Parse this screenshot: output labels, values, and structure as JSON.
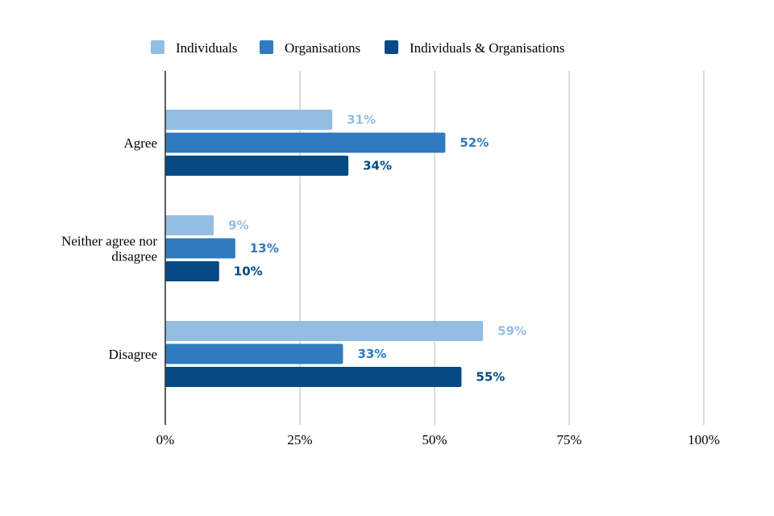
{
  "chart_data": {
    "type": "bar",
    "orientation": "horizontal",
    "title": "",
    "xlabel": "",
    "ylabel": "",
    "xlim": [
      0,
      100
    ],
    "grid": true,
    "legend": "top-center",
    "categories": [
      "Agree",
      "Neither agree nor disagree",
      "Disagree"
    ],
    "category_lines": [
      [
        "Agree"
      ],
      [
        "Neither agree nor",
        "disagree"
      ],
      [
        "Disagree"
      ]
    ],
    "ticks": [
      0,
      25,
      50,
      75,
      100
    ],
    "tick_labels": [
      "0%",
      "25%",
      "50%",
      "75%",
      "100%"
    ],
    "series": [
      {
        "name": "Individuals",
        "color": "#94bde3",
        "values": [
          31,
          9,
          59
        ],
        "labels": [
          "31%",
          "9%",
          "59%"
        ]
      },
      {
        "name": "Organisations",
        "color": "#2e7bbf",
        "values": [
          52,
          13,
          33
        ],
        "labels": [
          "52%",
          "13%",
          "33%"
        ]
      },
      {
        "name": "Individuals & Organisations",
        "color": "#054a85",
        "values": [
          34,
          10,
          55
        ],
        "labels": [
          "34%",
          "10%",
          "55%"
        ]
      }
    ]
  }
}
